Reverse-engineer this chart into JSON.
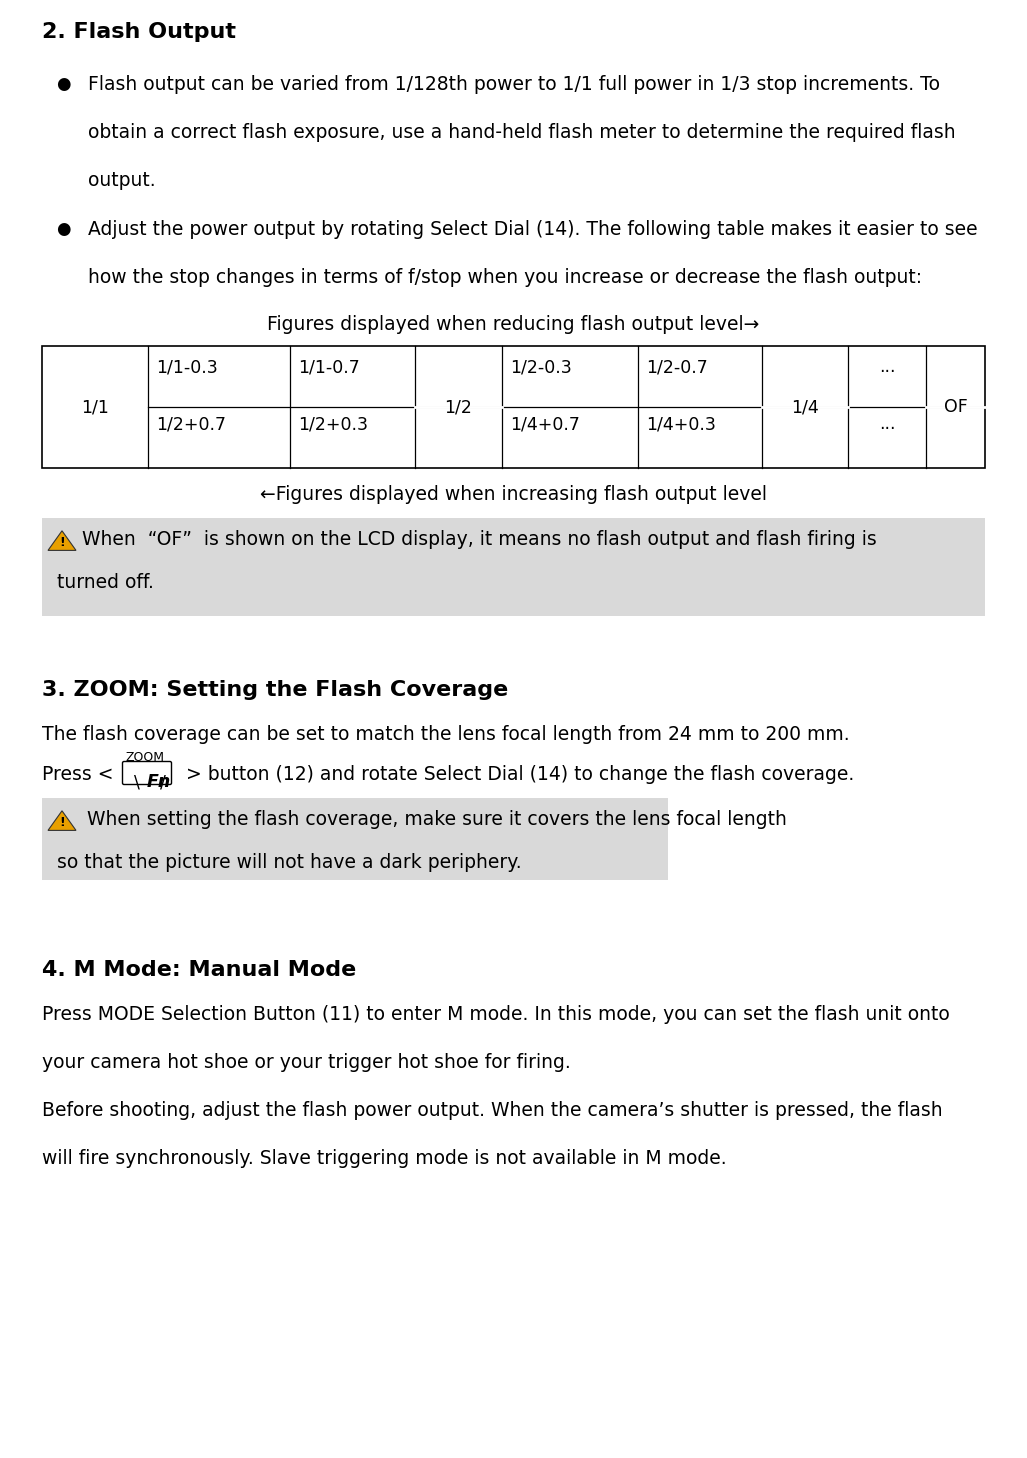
{
  "title": "2. Flash Output",
  "title_fontsize": 16,
  "bg_color": "#ffffff",
  "text_color": "#000000",
  "body_fontsize": 13.5,
  "table_caption_top": "Figures displayed when reducing flash output level→",
  "table_caption_bottom": "←Figures displayed when increasing flash output level",
  "note_bg": "#d9d9d9",
  "section3_title": "3. ZOOM: Setting the Flash Coverage",
  "section3_body1": "The flash coverage can be set to match the lens focal length from 24 mm to 200 mm.",
  "note2_text_line1": "   When setting the flash coverage, make sure it covers the lens focal length",
  "note2_text_line2": "so that the picture will not have a dark periphery.",
  "section4_title": "4. M Mode: Manual Mode",
  "section4_body1a": "Press MODE Selection Button (11) to enter M mode. In this mode, you can set the flash unit onto",
  "section4_body1b": "your camera hot shoe or your trigger hot shoe for firing.",
  "section4_body2a": "Before shooting, adjust the flash power output. When the camera’s shutter is pressed, the flash",
  "section4_body2b": "will fire synchronously. Slave triggering mode is not available in M mode."
}
